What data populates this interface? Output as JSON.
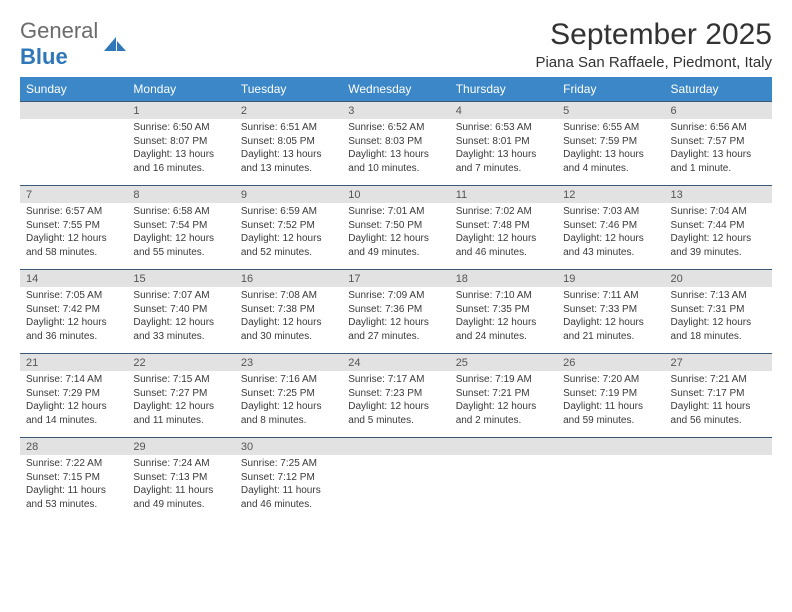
{
  "brand": {
    "part1": "General",
    "part2": "Blue"
  },
  "title": "September 2025",
  "location": "Piana San Raffaele, Piedmont, Italy",
  "colors": {
    "header_bg": "#3b87c8",
    "header_text": "#ffffff",
    "daynum_bg": "#e2e2e2",
    "border": "#3b5a78",
    "brand_gray": "#6b6b6b",
    "brand_blue": "#2f77b8"
  },
  "weekdays": [
    "Sunday",
    "Monday",
    "Tuesday",
    "Wednesday",
    "Thursday",
    "Friday",
    "Saturday"
  ],
  "weeks": [
    [
      {
        "n": "",
        "sr": "",
        "ss": "",
        "dl": ""
      },
      {
        "n": "1",
        "sr": "Sunrise: 6:50 AM",
        "ss": "Sunset: 8:07 PM",
        "dl": "Daylight: 13 hours and 16 minutes."
      },
      {
        "n": "2",
        "sr": "Sunrise: 6:51 AM",
        "ss": "Sunset: 8:05 PM",
        "dl": "Daylight: 13 hours and 13 minutes."
      },
      {
        "n": "3",
        "sr": "Sunrise: 6:52 AM",
        "ss": "Sunset: 8:03 PM",
        "dl": "Daylight: 13 hours and 10 minutes."
      },
      {
        "n": "4",
        "sr": "Sunrise: 6:53 AM",
        "ss": "Sunset: 8:01 PM",
        "dl": "Daylight: 13 hours and 7 minutes."
      },
      {
        "n": "5",
        "sr": "Sunrise: 6:55 AM",
        "ss": "Sunset: 7:59 PM",
        "dl": "Daylight: 13 hours and 4 minutes."
      },
      {
        "n": "6",
        "sr": "Sunrise: 6:56 AM",
        "ss": "Sunset: 7:57 PM",
        "dl": "Daylight: 13 hours and 1 minute."
      }
    ],
    [
      {
        "n": "7",
        "sr": "Sunrise: 6:57 AM",
        "ss": "Sunset: 7:55 PM",
        "dl": "Daylight: 12 hours and 58 minutes."
      },
      {
        "n": "8",
        "sr": "Sunrise: 6:58 AM",
        "ss": "Sunset: 7:54 PM",
        "dl": "Daylight: 12 hours and 55 minutes."
      },
      {
        "n": "9",
        "sr": "Sunrise: 6:59 AM",
        "ss": "Sunset: 7:52 PM",
        "dl": "Daylight: 12 hours and 52 minutes."
      },
      {
        "n": "10",
        "sr": "Sunrise: 7:01 AM",
        "ss": "Sunset: 7:50 PM",
        "dl": "Daylight: 12 hours and 49 minutes."
      },
      {
        "n": "11",
        "sr": "Sunrise: 7:02 AM",
        "ss": "Sunset: 7:48 PM",
        "dl": "Daylight: 12 hours and 46 minutes."
      },
      {
        "n": "12",
        "sr": "Sunrise: 7:03 AM",
        "ss": "Sunset: 7:46 PM",
        "dl": "Daylight: 12 hours and 43 minutes."
      },
      {
        "n": "13",
        "sr": "Sunrise: 7:04 AM",
        "ss": "Sunset: 7:44 PM",
        "dl": "Daylight: 12 hours and 39 minutes."
      }
    ],
    [
      {
        "n": "14",
        "sr": "Sunrise: 7:05 AM",
        "ss": "Sunset: 7:42 PM",
        "dl": "Daylight: 12 hours and 36 minutes."
      },
      {
        "n": "15",
        "sr": "Sunrise: 7:07 AM",
        "ss": "Sunset: 7:40 PM",
        "dl": "Daylight: 12 hours and 33 minutes."
      },
      {
        "n": "16",
        "sr": "Sunrise: 7:08 AM",
        "ss": "Sunset: 7:38 PM",
        "dl": "Daylight: 12 hours and 30 minutes."
      },
      {
        "n": "17",
        "sr": "Sunrise: 7:09 AM",
        "ss": "Sunset: 7:36 PM",
        "dl": "Daylight: 12 hours and 27 minutes."
      },
      {
        "n": "18",
        "sr": "Sunrise: 7:10 AM",
        "ss": "Sunset: 7:35 PM",
        "dl": "Daylight: 12 hours and 24 minutes."
      },
      {
        "n": "19",
        "sr": "Sunrise: 7:11 AM",
        "ss": "Sunset: 7:33 PM",
        "dl": "Daylight: 12 hours and 21 minutes."
      },
      {
        "n": "20",
        "sr": "Sunrise: 7:13 AM",
        "ss": "Sunset: 7:31 PM",
        "dl": "Daylight: 12 hours and 18 minutes."
      }
    ],
    [
      {
        "n": "21",
        "sr": "Sunrise: 7:14 AM",
        "ss": "Sunset: 7:29 PM",
        "dl": "Daylight: 12 hours and 14 minutes."
      },
      {
        "n": "22",
        "sr": "Sunrise: 7:15 AM",
        "ss": "Sunset: 7:27 PM",
        "dl": "Daylight: 12 hours and 11 minutes."
      },
      {
        "n": "23",
        "sr": "Sunrise: 7:16 AM",
        "ss": "Sunset: 7:25 PM",
        "dl": "Daylight: 12 hours and 8 minutes."
      },
      {
        "n": "24",
        "sr": "Sunrise: 7:17 AM",
        "ss": "Sunset: 7:23 PM",
        "dl": "Daylight: 12 hours and 5 minutes."
      },
      {
        "n": "25",
        "sr": "Sunrise: 7:19 AM",
        "ss": "Sunset: 7:21 PM",
        "dl": "Daylight: 12 hours and 2 minutes."
      },
      {
        "n": "26",
        "sr": "Sunrise: 7:20 AM",
        "ss": "Sunset: 7:19 PM",
        "dl": "Daylight: 11 hours and 59 minutes."
      },
      {
        "n": "27",
        "sr": "Sunrise: 7:21 AM",
        "ss": "Sunset: 7:17 PM",
        "dl": "Daylight: 11 hours and 56 minutes."
      }
    ],
    [
      {
        "n": "28",
        "sr": "Sunrise: 7:22 AM",
        "ss": "Sunset: 7:15 PM",
        "dl": "Daylight: 11 hours and 53 minutes."
      },
      {
        "n": "29",
        "sr": "Sunrise: 7:24 AM",
        "ss": "Sunset: 7:13 PM",
        "dl": "Daylight: 11 hours and 49 minutes."
      },
      {
        "n": "30",
        "sr": "Sunrise: 7:25 AM",
        "ss": "Sunset: 7:12 PM",
        "dl": "Daylight: 11 hours and 46 minutes."
      },
      {
        "n": "",
        "sr": "",
        "ss": "",
        "dl": ""
      },
      {
        "n": "",
        "sr": "",
        "ss": "",
        "dl": ""
      },
      {
        "n": "",
        "sr": "",
        "ss": "",
        "dl": ""
      },
      {
        "n": "",
        "sr": "",
        "ss": "",
        "dl": ""
      }
    ]
  ]
}
